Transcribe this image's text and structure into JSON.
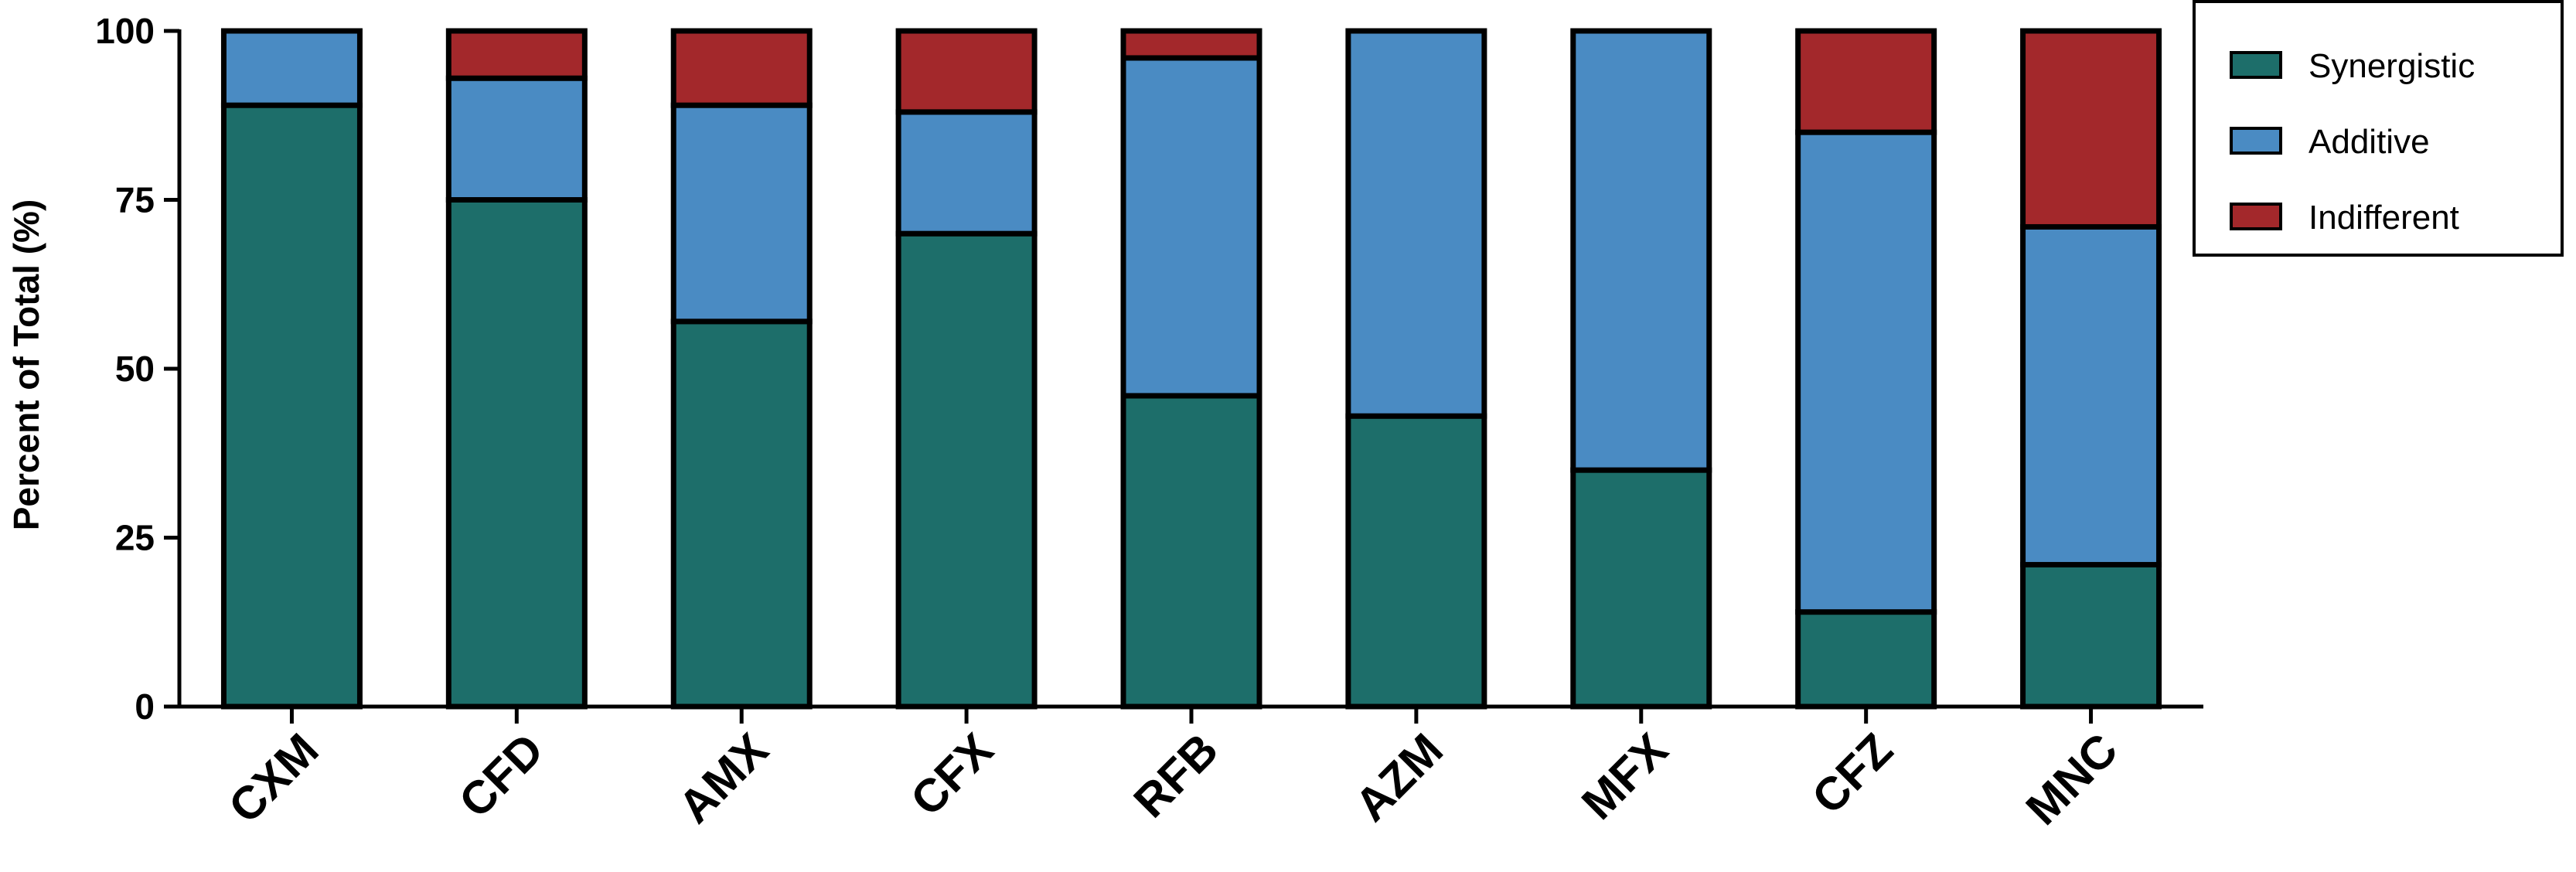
{
  "chart_data": {
    "type": "bar",
    "stacked": true,
    "categories": [
      "CXM",
      "CFD",
      "AMX",
      "CFX",
      "RFB",
      "AZM",
      "MFX",
      "CFZ",
      "MNC"
    ],
    "series": [
      {
        "name": "Synergistic",
        "color": "#1d6e6a",
        "values": [
          89,
          75,
          57,
          70,
          46,
          43,
          35,
          14,
          21
        ]
      },
      {
        "name": "Additive",
        "color": "#4a8bc3",
        "values": [
          11,
          18,
          32,
          18,
          50,
          57,
          65,
          71,
          50
        ]
      },
      {
        "name": "Indifferent",
        "color": "#a3282b",
        "values": [
          0,
          7,
          11,
          12,
          4,
          0,
          0,
          15,
          29
        ]
      }
    ],
    "title": "",
    "xlabel": "",
    "ylabel": "Percent of Total (%)",
    "ylim": [
      0,
      100
    ],
    "yticks": [
      0,
      25,
      50,
      75,
      100
    ],
    "grid": false,
    "legend_position": "top-right"
  }
}
